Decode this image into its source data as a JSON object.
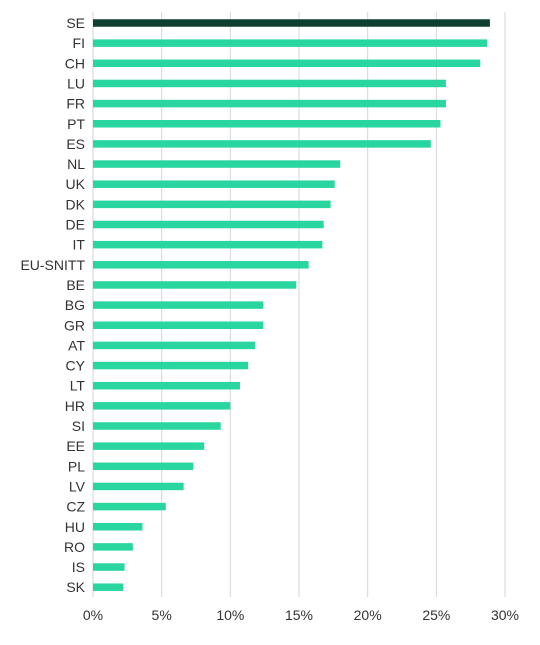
{
  "chart_data": {
    "type": "bar",
    "orientation": "horizontal",
    "categories": [
      "SE",
      "FI",
      "CH",
      "LU",
      "FR",
      "PT",
      "ES",
      "NL",
      "UK",
      "DK",
      "DE",
      "IT",
      "EU-SNITT",
      "BE",
      "BG",
      "GR",
      "AT",
      "CY",
      "LT",
      "HR",
      "SI",
      "EE",
      "PL",
      "LV",
      "CZ",
      "HU",
      "RO",
      "IS",
      "SK"
    ],
    "values": [
      28.9,
      28.7,
      28.2,
      25.7,
      25.7,
      25.3,
      24.6,
      18.0,
      17.6,
      17.3,
      16.8,
      16.7,
      15.7,
      14.8,
      12.4,
      12.4,
      11.8,
      11.3,
      10.7,
      10.0,
      9.3,
      8.1,
      7.3,
      6.6,
      5.3,
      3.6,
      2.9,
      2.3,
      2.2
    ],
    "highlight_category": "SE",
    "xlim": [
      0,
      30
    ],
    "x_ticks": [
      0,
      5,
      10,
      15,
      20,
      25,
      30
    ],
    "x_tick_labels": [
      "0%",
      "5%",
      "10%",
      "15%",
      "20%",
      "25%",
      "30%"
    ],
    "grid": "vertical",
    "legend": "none",
    "title": "",
    "xlabel": "",
    "ylabel": "",
    "colors": {
      "bar": "#2ad6a0",
      "highlight": "#0e3f31",
      "grid": "#d6d6d6",
      "text": "#333333"
    }
  }
}
